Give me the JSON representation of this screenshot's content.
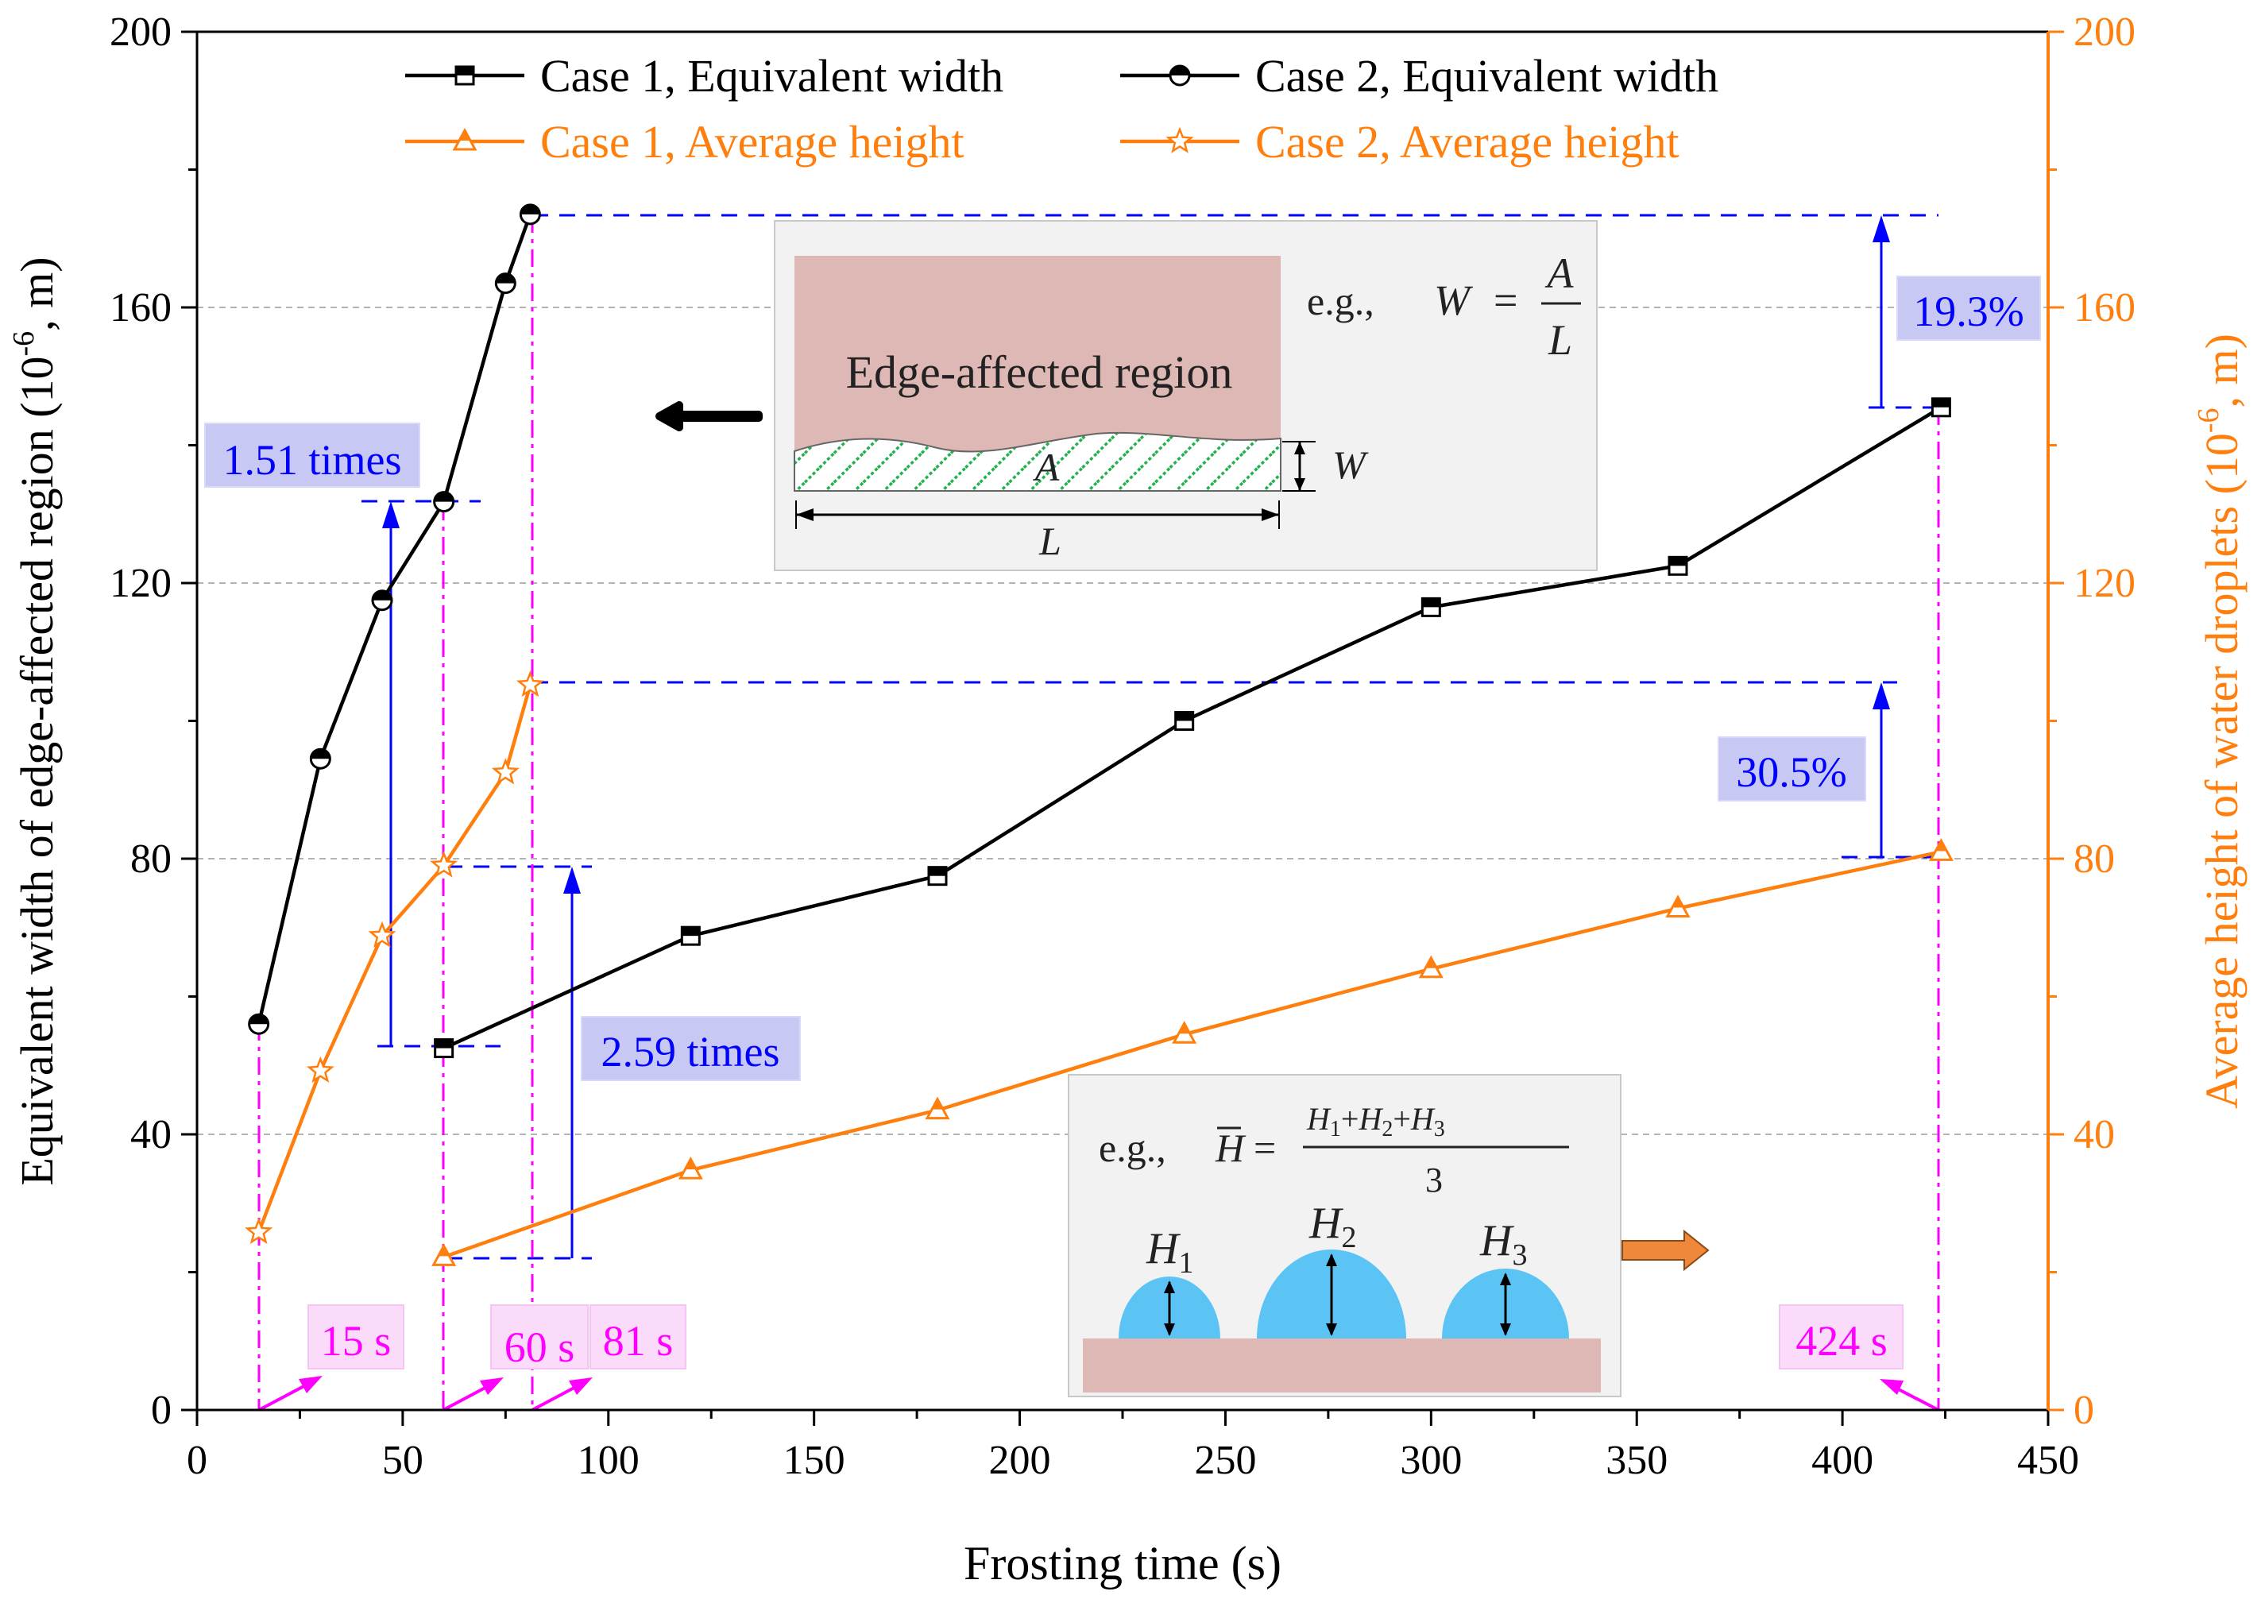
{
  "chart_data": {
    "type": "line",
    "xlabel": "Frosting time (s)",
    "ylabel_left": "Equivalent width of edge-affected region (10",
    "ylabel_left_sup": "-6",
    "ylabel_left_end": ", m)",
    "ylabel_right": "Average height of water droplets (10",
    "ylabel_right_sup": "-6",
    "ylabel_right_end": ", m)",
    "xlim": [
      0,
      450
    ],
    "ylim_left": [
      0,
      200
    ],
    "ylim_right": [
      0,
      200
    ],
    "x_ticks": [
      0,
      50,
      100,
      150,
      200,
      250,
      300,
      350,
      400,
      450
    ],
    "y_ticks_left": [
      0,
      40,
      80,
      120,
      160,
      200
    ],
    "y_ticks_right": [
      0,
      40,
      80,
      120,
      160,
      200
    ],
    "grid": "horizontal dashed",
    "legend_position": "top-center",
    "series": [
      {
        "name": "Case 1, Equivalent width",
        "axis": "left",
        "marker": "square",
        "color": "#000000",
        "x": [
          60,
          120,
          180,
          240,
          300,
          360,
          424
        ],
        "y": [
          52.5,
          68.8,
          77.5,
          100.0,
          116.5,
          122.5,
          145.5
        ]
      },
      {
        "name": "Case 2, Equivalent width",
        "axis": "left",
        "marker": "circle",
        "color": "#000000",
        "x": [
          15,
          30,
          45,
          60,
          75,
          81
        ],
        "y": [
          56.0,
          94.5,
          117.5,
          131.8,
          163.5,
          173.5
        ]
      },
      {
        "name": "Case 1, Average height",
        "axis": "right",
        "marker": "triangle",
        "color": "#ff7f0e",
        "x": [
          60,
          120,
          180,
          240,
          300,
          360,
          424
        ],
        "y": [
          22.2,
          34.8,
          43.5,
          54.5,
          64.0,
          72.8,
          81.0
        ]
      },
      {
        "name": "Case 2, Average height",
        "axis": "right",
        "marker": "star",
        "color": "#ff7f0e",
        "x": [
          15,
          30,
          45,
          60,
          75,
          81
        ],
        "y": [
          25.8,
          49.2,
          68.8,
          79.0,
          92.5,
          105.2
        ]
      }
    ],
    "annotations": {
      "times_151": "1.51 times",
      "times_259": "2.59 times",
      "pct_193": "19.3%",
      "pct_305": "30.5%",
      "t15": "15 s",
      "t60": "60 s",
      "t81": "81 s",
      "t424": "424 s",
      "edge_region": "Edge-affected region",
      "eg": "e.g.,",
      "W": "W",
      "A": "A",
      "L": "L",
      "H": "H",
      "H1": "H",
      "H2": "H",
      "H3": "H",
      "sub1": "1",
      "sub2": "2",
      "sub3": "3",
      "three": "3",
      "plus": "+",
      "equals": "="
    }
  }
}
